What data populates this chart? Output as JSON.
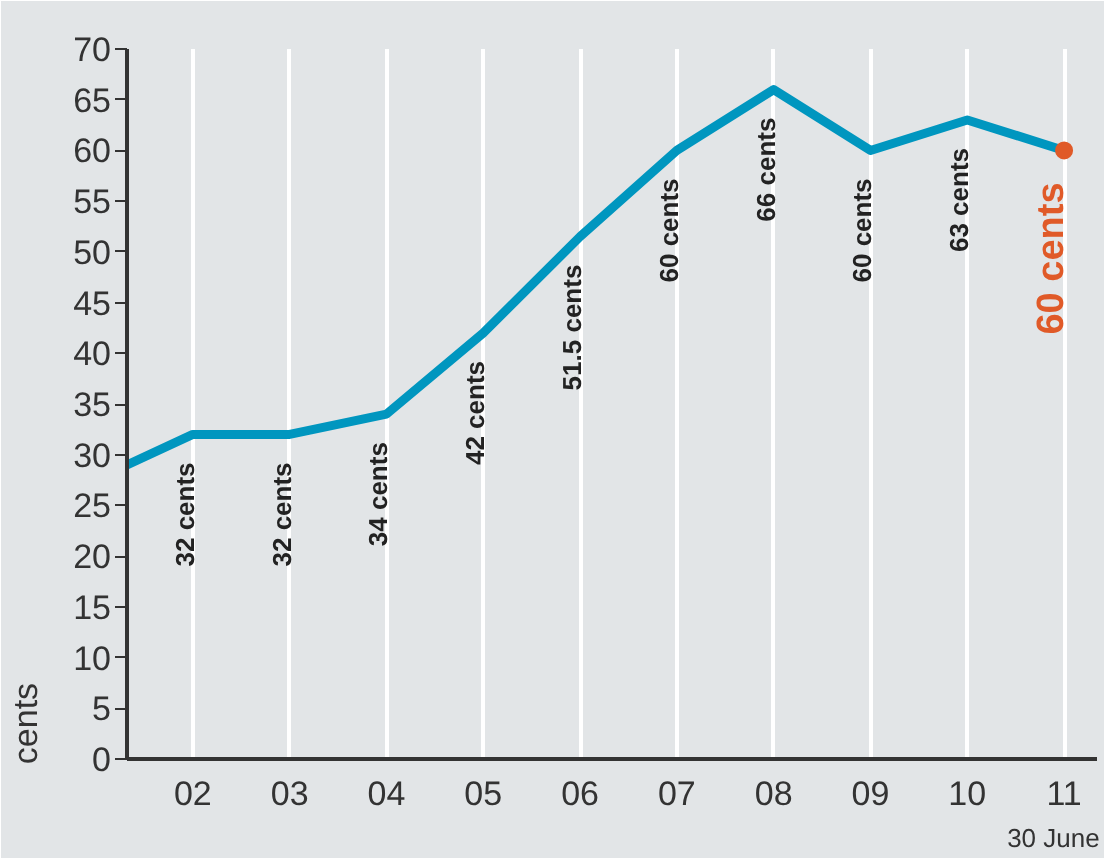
{
  "chart_data": {
    "type": "line",
    "ylabel": "cents",
    "x": [
      1.32,
      2,
      3,
      4,
      5,
      6,
      7,
      8,
      9,
      10,
      11
    ],
    "xlim": [
      1.32,
      11.34
    ],
    "xticks": [
      {
        "value": 2,
        "label": "02"
      },
      {
        "value": 3,
        "label": "03"
      },
      {
        "value": 4,
        "label": "04"
      },
      {
        "value": 5,
        "label": "05"
      },
      {
        "value": 6,
        "label": "06"
      },
      {
        "value": 7,
        "label": "07"
      },
      {
        "value": 8,
        "label": "08"
      },
      {
        "value": 9,
        "label": "09"
      },
      {
        "value": 10,
        "label": "10"
      },
      {
        "value": 11,
        "label": "11"
      }
    ],
    "ylim": [
      0,
      70
    ],
    "yticks": [
      0,
      5,
      10,
      15,
      20,
      25,
      30,
      35,
      40,
      45,
      50,
      55,
      60,
      65,
      70
    ],
    "grid": "x",
    "series": [
      {
        "color": "#0096bf",
        "values": [
          29,
          32,
          32,
          34,
          42,
          51.5,
          60,
          66,
          60,
          63,
          60
        ],
        "value_labels": [
          null,
          "32 cents",
          "32 cents",
          "34 cents",
          "42 cents",
          "51.5 cents",
          "60 cents",
          "66 cents",
          "60 cents",
          "63 cents",
          null
        ]
      },
      {
        "type": "scatter",
        "color": "#e05a28",
        "x": [
          11
        ],
        "values": [
          60
        ],
        "value_labels": [
          "60 cents"
        ]
      }
    ],
    "annotations": [
      "30 June"
    ]
  }
}
